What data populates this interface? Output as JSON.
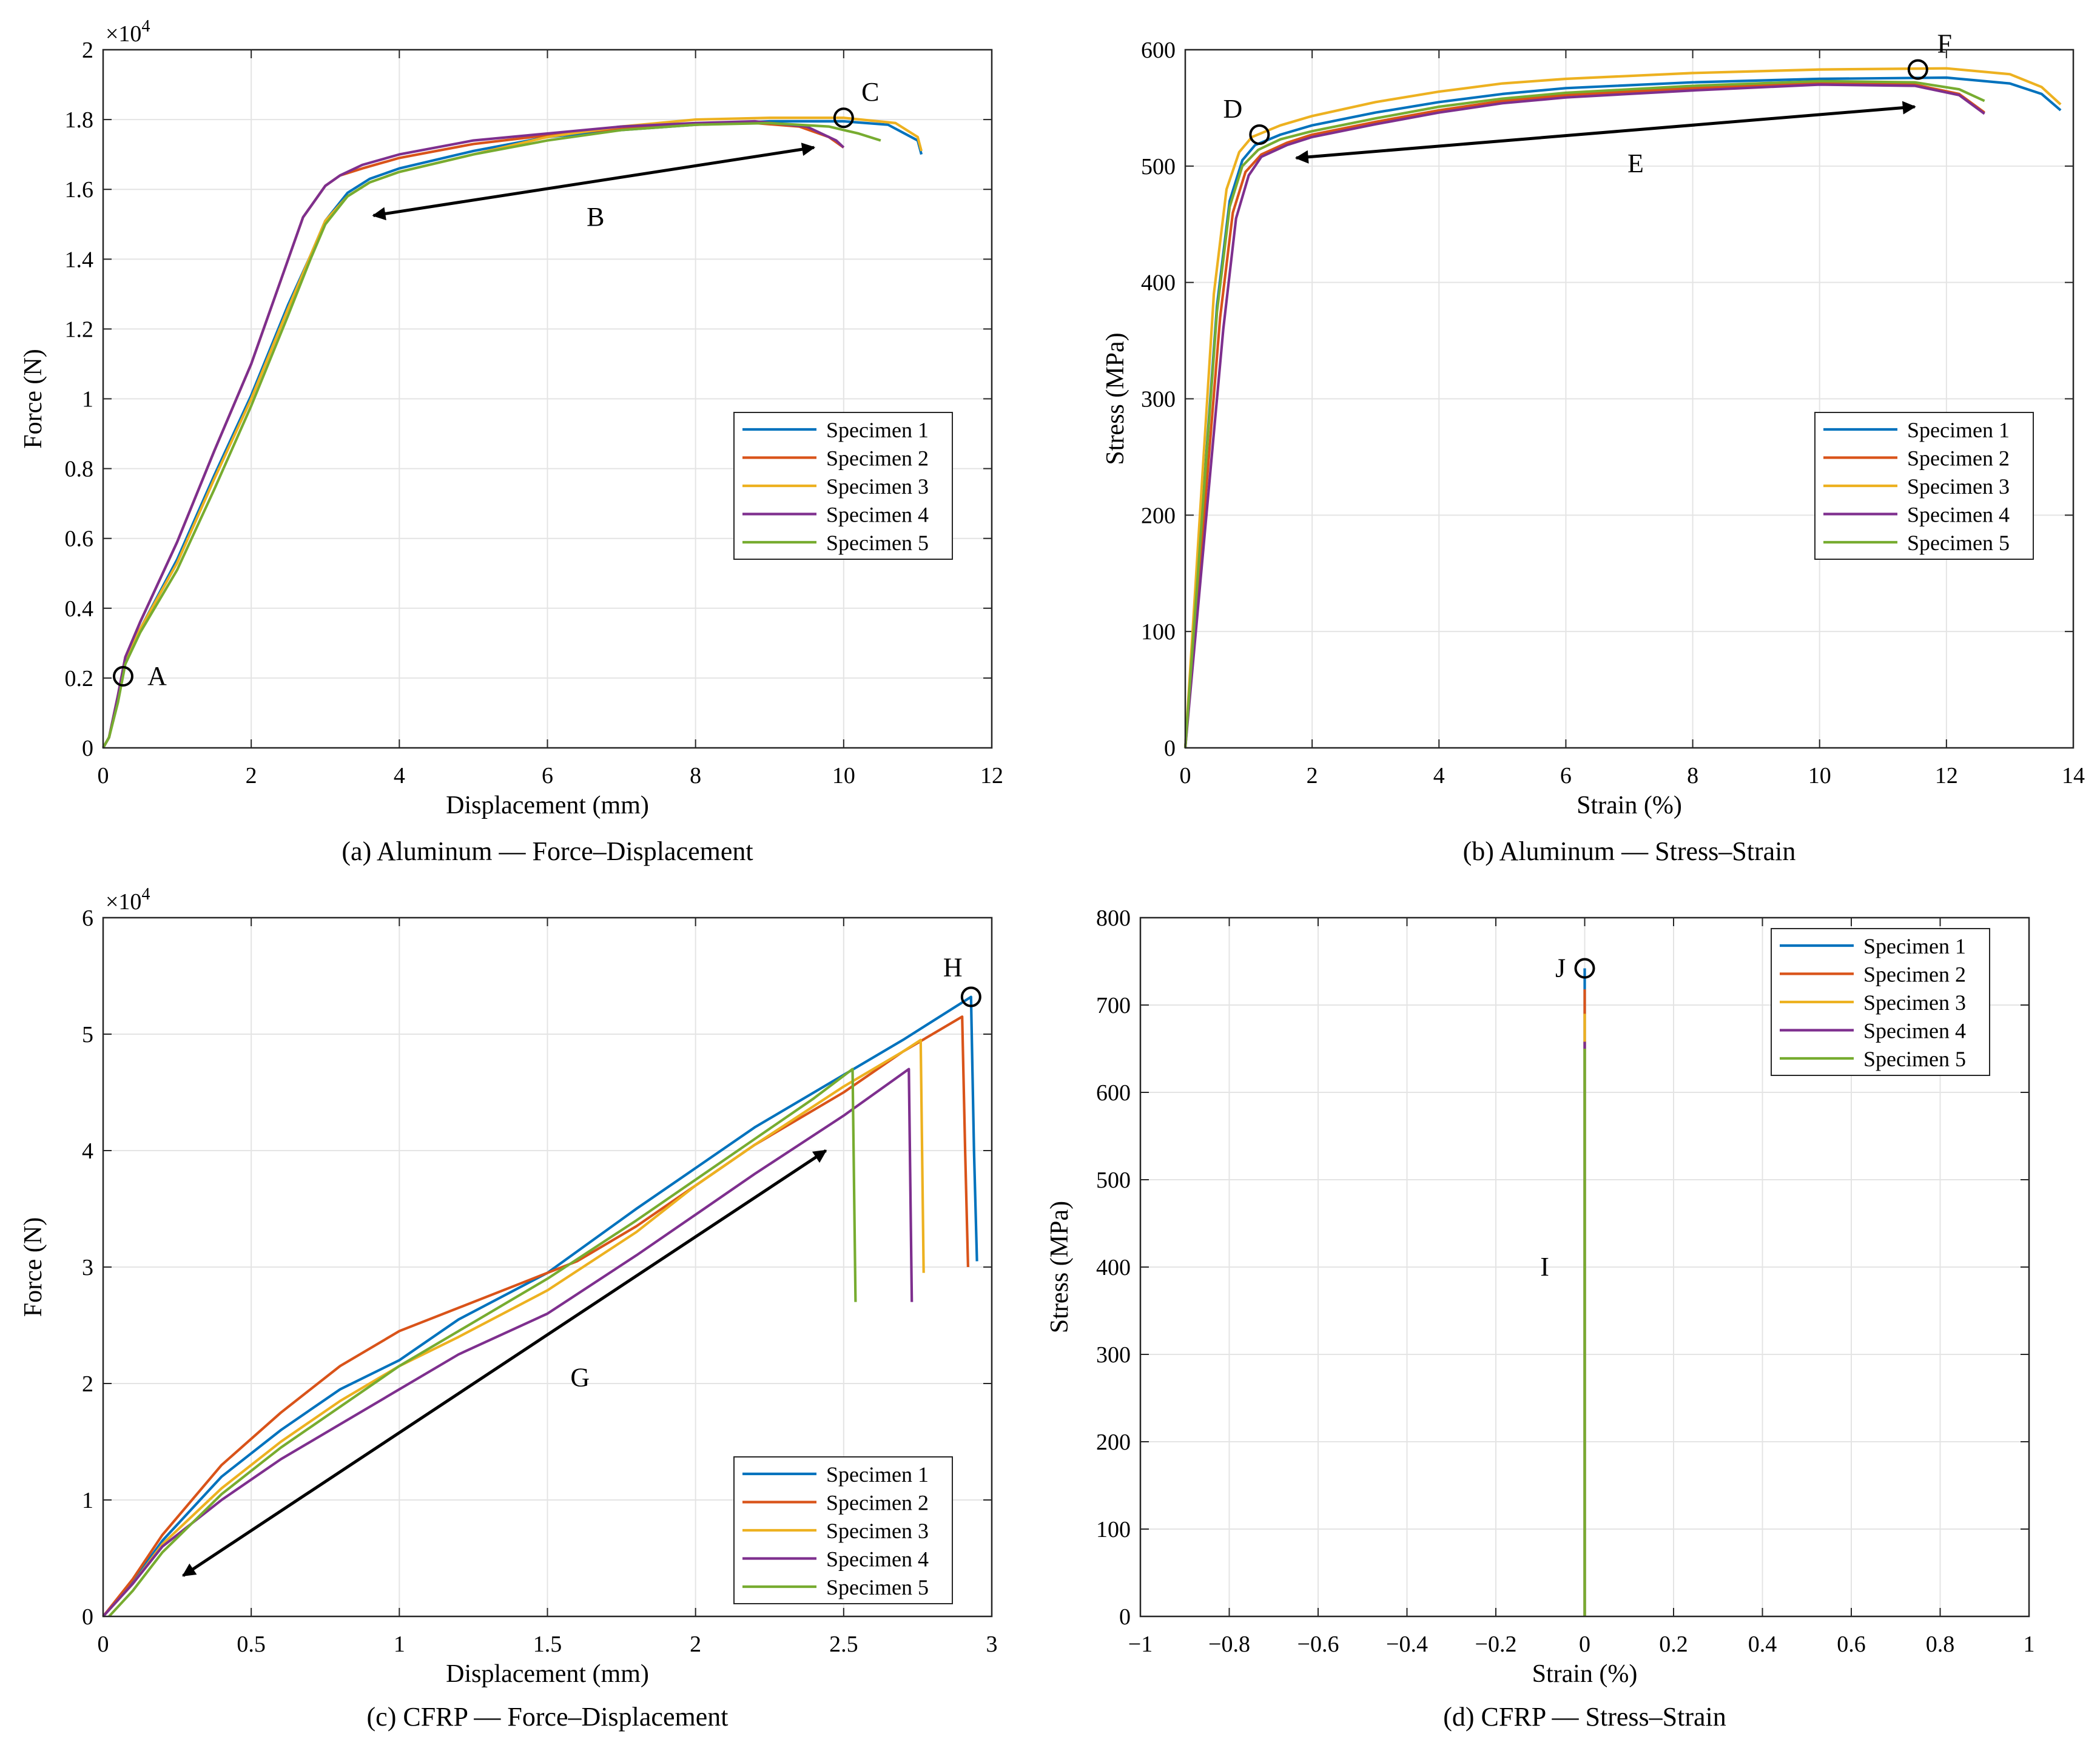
{
  "chart_data": [
    {
      "type": "line",
      "caption": "(a) Aluminum — Force–Displacement",
      "xlabel": "Displacement (mm)",
      "ylabel": "Force (N)",
      "xlim": [
        0,
        12
      ],
      "ylim": [
        0,
        20000
      ],
      "xticks": [
        0,
        2,
        4,
        6,
        8,
        10,
        12
      ],
      "yticks": [
        0,
        2000,
        4000,
        6000,
        8000,
        10000,
        12000,
        14000,
        16000,
        18000,
        20000
      ],
      "ytick_labels": [
        "0",
        "0.2",
        "0.4",
        "0.6",
        "0.8",
        "1",
        "1.2",
        "1.4",
        "1.6",
        "1.8",
        "2"
      ],
      "y_multiplier": "×10",
      "y_multiplier_exp": "4",
      "grid": true,
      "legend": "middle-right",
      "series": [
        {
          "name": "Specimen 1",
          "color": "#0072BD",
          "x": [
            0,
            0.08,
            0.2,
            0.3,
            0.5,
            1.0,
            1.5,
            2.0,
            2.5,
            2.8,
            3.0,
            3.3,
            3.6,
            4.0,
            5.0,
            6.0,
            7.0,
            8.0,
            9.0,
            10.0,
            10.6,
            11.0,
            11.05
          ],
          "y": [
            0,
            300,
            1400,
            2500,
            3400,
            5400,
            7800,
            10100,
            12700,
            14100,
            15100,
            15900,
            16300,
            16600,
            17100,
            17500,
            17700,
            17850,
            17950,
            17950,
            17850,
            17400,
            17000
          ]
        },
        {
          "name": "Specimen 2",
          "color": "#D95319",
          "x": [
            0,
            0.08,
            0.2,
            0.3,
            0.5,
            1.0,
            1.5,
            2.0,
            2.4,
            2.7,
            3.0,
            3.2,
            3.5,
            4.0,
            5.0,
            6.0,
            7.0,
            8.0,
            8.8,
            9.4,
            9.8,
            10.0
          ],
          "y": [
            0,
            300,
            1500,
            2600,
            3600,
            5900,
            8500,
            11000,
            13400,
            15200,
            16100,
            16400,
            16600,
            16900,
            17300,
            17550,
            17750,
            17850,
            17900,
            17800,
            17500,
            17200
          ]
        },
        {
          "name": "Specimen 3",
          "color": "#EDB120",
          "x": [
            0,
            0.08,
            0.2,
            0.3,
            0.5,
            1.0,
            1.5,
            2.0,
            2.5,
            2.8,
            3.0,
            3.3,
            3.6,
            4.0,
            5.0,
            6.0,
            7.0,
            8.0,
            9.0,
            10.0,
            10.7,
            11.0,
            11.05
          ],
          "y": [
            0,
            300,
            1400,
            2500,
            3400,
            5300,
            7700,
            10000,
            12600,
            14100,
            15100,
            15800,
            16200,
            16500,
            17000,
            17500,
            17800,
            18000,
            18050,
            18050,
            17900,
            17500,
            17100
          ]
        },
        {
          "name": "Specimen 4",
          "color": "#7E2F8E",
          "x": [
            0,
            0.08,
            0.2,
            0.3,
            0.5,
            1.0,
            1.5,
            2.0,
            2.4,
            2.7,
            3.0,
            3.2,
            3.5,
            4.0,
            5.0,
            6.0,
            7.0,
            8.0,
            8.8,
            9.5,
            9.9,
            10.0
          ],
          "y": [
            0,
            300,
            1500,
            2600,
            3600,
            5900,
            8500,
            11000,
            13400,
            15200,
            16100,
            16400,
            16700,
            17000,
            17400,
            17600,
            17800,
            17900,
            17950,
            17800,
            17400,
            17200
          ]
        },
        {
          "name": "Specimen 5",
          "color": "#77AC30",
          "x": [
            0,
            0.08,
            0.2,
            0.3,
            0.5,
            1.0,
            1.5,
            2.0,
            2.5,
            2.8,
            3.0,
            3.3,
            3.6,
            4.0,
            5.0,
            6.0,
            7.0,
            8.0,
            9.0,
            9.8,
            10.2,
            10.5
          ],
          "y": [
            0,
            300,
            1300,
            2400,
            3300,
            5100,
            7400,
            9800,
            12400,
            14000,
            15000,
            15800,
            16200,
            16500,
            17000,
            17400,
            17700,
            17850,
            17900,
            17800,
            17600,
            17400
          ]
        }
      ],
      "annotations": [
        {
          "label": "A",
          "x": 0.27,
          "y": 2050
        },
        {
          "label": "B",
          "x": 6.65,
          "y": 15200
        },
        {
          "label": "C",
          "x": 10.0,
          "y": 18050
        }
      ],
      "arrow": {
        "from": [
          3.65,
          15250
        ],
        "to": [
          9.6,
          17200
        ],
        "double": true
      }
    },
    {
      "type": "line",
      "caption": "(b) Aluminum — Stress–Strain",
      "xlabel": "Strain (%)",
      "ylabel": "Stress (MPa)",
      "xlim": [
        0,
        14
      ],
      "ylim": [
        0,
        600
      ],
      "xticks": [
        0,
        2,
        4,
        6,
        8,
        10,
        12,
        14
      ],
      "yticks": [
        0,
        100,
        200,
        300,
        400,
        500,
        600
      ],
      "grid": true,
      "legend": "middle-right",
      "series": [
        {
          "name": "Specimen 1",
          "color": "#0072BD",
          "x": [
            0,
            0.5,
            0.7,
            0.9,
            1.1,
            1.5,
            2,
            3,
            4,
            5,
            6,
            8,
            10,
            12,
            13,
            13.5,
            13.8
          ],
          "y": [
            0,
            380,
            470,
            505,
            518,
            527,
            535,
            546,
            555,
            562,
            567,
            572,
            575,
            576,
            571,
            562,
            548
          ]
        },
        {
          "name": "Specimen 2",
          "color": "#D95319",
          "x": [
            0,
            0.55,
            0.75,
            0.95,
            1.2,
            1.6,
            2,
            3,
            4,
            5,
            6,
            8,
            10,
            11.5,
            12.2,
            12.6
          ],
          "y": [
            0,
            370,
            460,
            495,
            510,
            520,
            527,
            538,
            548,
            556,
            561,
            567,
            571,
            570,
            562,
            546
          ]
        },
        {
          "name": "Specimen 3",
          "color": "#EDB120",
          "x": [
            0,
            0.45,
            0.65,
            0.85,
            1.05,
            1.5,
            2,
            3,
            4,
            5,
            6,
            8,
            10,
            12,
            13,
            13.5,
            13.8
          ],
          "y": [
            0,
            390,
            480,
            512,
            525,
            535,
            543,
            555,
            564,
            571,
            575,
            580,
            583,
            584,
            579,
            568,
            553
          ]
        },
        {
          "name": "Specimen 4",
          "color": "#7E2F8E",
          "x": [
            0,
            0.6,
            0.8,
            1.0,
            1.2,
            1.6,
            2,
            3,
            4,
            5,
            6,
            8,
            10,
            11.5,
            12.2,
            12.6
          ],
          "y": [
            0,
            360,
            455,
            492,
            508,
            518,
            525,
            536,
            546,
            554,
            559,
            565,
            570,
            569,
            561,
            545
          ]
        },
        {
          "name": "Specimen 5",
          "color": "#77AC30",
          "x": [
            0,
            0.5,
            0.7,
            0.9,
            1.15,
            1.5,
            2,
            3,
            4,
            5,
            6,
            8,
            10,
            11.5,
            12.2,
            12.6
          ],
          "y": [
            0,
            375,
            465,
            500,
            514,
            523,
            530,
            541,
            551,
            558,
            563,
            569,
            573,
            572,
            566,
            556
          ]
        }
      ],
      "annotations": [
        {
          "label": "D",
          "x": 1.17,
          "y": 527
        },
        {
          "label": "E",
          "x": 7.1,
          "y": 502
        },
        {
          "label": "F",
          "x": 11.55,
          "y": 583
        }
      ],
      "arrow": {
        "from": [
          1.75,
          507
        ],
        "to": [
          11.5,
          551
        ],
        "double": true
      }
    },
    {
      "type": "line",
      "caption": "(c) CFRP — Force–Displacement",
      "xlabel": "Displacement (mm)",
      "ylabel": "Force (N)",
      "xlim": [
        0,
        3
      ],
      "ylim": [
        0,
        60000
      ],
      "xticks": [
        0,
        0.5,
        1,
        1.5,
        2,
        2.5,
        3
      ],
      "xtick_labels": [
        "0",
        "0.5",
        "1",
        "1.5",
        "2",
        "2.5",
        "3"
      ],
      "yticks": [
        0,
        10000,
        20000,
        30000,
        40000,
        50000,
        60000
      ],
      "ytick_labels": [
        "0",
        "1",
        "2",
        "3",
        "4",
        "5",
        "6"
      ],
      "y_multiplier": "×10",
      "y_multiplier_exp": "4",
      "grid": true,
      "legend": "bottom-right",
      "series": [
        {
          "name": "Specimen 1",
          "color": "#0072BD",
          "x": [
            0,
            0.1,
            0.2,
            0.4,
            0.6,
            0.8,
            1.0,
            1.2,
            1.5,
            1.8,
            2.0,
            2.2,
            2.5,
            2.7,
            2.93,
            2.94,
            2.95
          ],
          "y": [
            0,
            3000,
            6500,
            12000,
            16000,
            19500,
            22000,
            25500,
            29500,
            35000,
            38500,
            42000,
            46500,
            49500,
            53200,
            40000,
            30500
          ]
        },
        {
          "name": "Specimen 2",
          "color": "#D95319",
          "x": [
            0,
            0.1,
            0.2,
            0.4,
            0.6,
            0.8,
            1.0,
            1.2,
            1.4,
            1.6,
            1.8,
            2.0,
            2.2,
            2.5,
            2.7,
            2.9,
            2.91,
            2.92
          ],
          "y": [
            0,
            3200,
            7000,
            13000,
            17500,
            21500,
            24500,
            26500,
            28500,
            30500,
            33500,
            37000,
            40500,
            45000,
            48500,
            51500,
            40000,
            30000
          ]
        },
        {
          "name": "Specimen 3",
          "color": "#EDB120",
          "x": [
            0,
            0.1,
            0.2,
            0.4,
            0.6,
            0.8,
            1.0,
            1.2,
            1.5,
            1.8,
            2.0,
            2.2,
            2.5,
            2.7,
            2.76,
            2.77
          ],
          "y": [
            0,
            2800,
            6200,
            11000,
            15000,
            18500,
            21500,
            24000,
            28000,
            33000,
            37000,
            40500,
            45500,
            48500,
            49500,
            29500
          ]
        },
        {
          "name": "Specimen 4",
          "color": "#7E2F8E",
          "x": [
            0,
            0.1,
            0.2,
            0.4,
            0.6,
            0.8,
            1.0,
            1.2,
            1.5,
            1.8,
            2.0,
            2.2,
            2.5,
            2.72,
            2.73
          ],
          "y": [
            0,
            2800,
            6000,
            10000,
            13500,
            16500,
            19500,
            22500,
            26000,
            31000,
            34500,
            38000,
            43000,
            47000,
            27000
          ]
        },
        {
          "name": "Specimen 5",
          "color": "#77AC30",
          "x": [
            0.02,
            0.1,
            0.2,
            0.4,
            0.6,
            0.8,
            1.0,
            1.2,
            1.5,
            1.8,
            2.0,
            2.2,
            2.4,
            2.53,
            2.54
          ],
          "y": [
            0,
            2200,
            5500,
            10500,
            14500,
            18000,
            21500,
            24500,
            29000,
            34000,
            37500,
            41000,
            44500,
            47000,
            27000
          ]
        }
      ],
      "annotations": [
        {
          "label": "H",
          "x": 2.93,
          "y": 53200
        },
        {
          "label": "G",
          "x": 1.61,
          "y": 20500
        }
      ],
      "arrow": {
        "from": [
          0.27,
          3500
        ],
        "to": [
          2.44,
          40000
        ],
        "double": true
      }
    },
    {
      "type": "line",
      "caption": "(d) CFRP — Stress–Strain",
      "xlabel": "Strain (%)",
      "ylabel": "Stress (MPa)",
      "xlim": [
        -1,
        1
      ],
      "ylim": [
        0,
        800
      ],
      "xticks": [
        -1,
        -0.8,
        -0.6,
        -0.4,
        -0.2,
        0,
        0.2,
        0.4,
        0.6,
        0.8,
        1
      ],
      "xtick_labels": [
        "−1",
        "−0.8",
        "−0.6",
        "−0.4",
        "−0.2",
        "0",
        "0.2",
        "0.4",
        "0.6",
        "0.8",
        "1"
      ],
      "yticks": [
        0,
        100,
        200,
        300,
        400,
        500,
        600,
        700,
        800
      ],
      "grid": true,
      "legend": "top-right",
      "series": [
        {
          "name": "Specimen 1",
          "color": "#0072BD",
          "x": [
            0,
            0
          ],
          "y": [
            0,
            742
          ]
        },
        {
          "name": "Specimen 2",
          "color": "#D95319",
          "x": [
            0,
            0
          ],
          "y": [
            0,
            718
          ]
        },
        {
          "name": "Specimen 3",
          "color": "#EDB120",
          "x": [
            0,
            0
          ],
          "y": [
            0,
            690
          ]
        },
        {
          "name": "Specimen 4",
          "color": "#7E2F8E",
          "x": [
            0,
            0
          ],
          "y": [
            0,
            658
          ]
        },
        {
          "name": "Specimen 5",
          "color": "#77AC30",
          "x": [
            0,
            0
          ],
          "y": [
            0,
            650
          ]
        }
      ],
      "annotations": [
        {
          "label": "J",
          "x": 0.0,
          "y": 742
        },
        {
          "label": "I",
          "x": -0.09,
          "y": 400
        }
      ]
    }
  ]
}
